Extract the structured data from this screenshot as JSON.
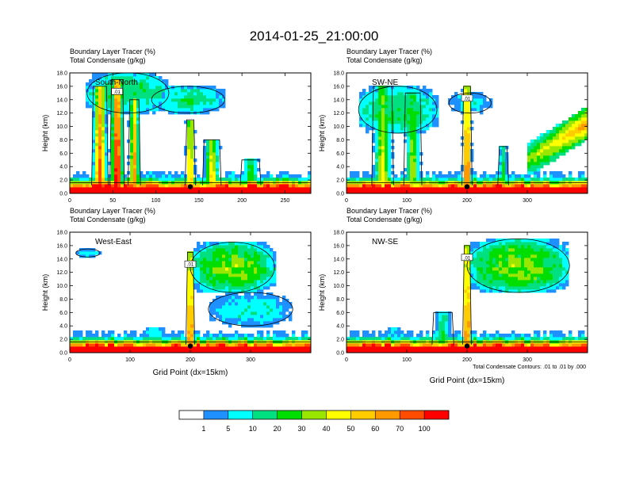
{
  "title": "2014-01-25_21:00:00",
  "subtitle_line1": "Boundary Layer Tracer   (%)",
  "subtitle_line2": "Total Condensate   (g/kg)",
  "ylabel": "Height (km)",
  "xlabel": "Grid Point (dx=15km)",
  "footnote": "Total Condensate Contours: .01 to .01 by .000",
  "contour_label": ".01",
  "colorbar": {
    "labels": [
      "1",
      "5",
      "10",
      "20",
      "30",
      "40",
      "50",
      "60",
      "70",
      "100"
    ],
    "colors": [
      "#ffffff",
      "#1e90ff",
      "#00ffff",
      "#00e080",
      "#00dd00",
      "#99e600",
      "#ffff00",
      "#ffcc00",
      "#ff9900",
      "#ff4c00",
      "#ff0000"
    ]
  },
  "chart_data": [
    {
      "type": "heatmap",
      "panel_label": "South-North",
      "xticks": [
        0,
        50,
        100,
        150,
        200,
        250
      ],
      "xlim": [
        0,
        280
      ],
      "yticks": [
        "0.0",
        "2.0",
        "4.0",
        "6.0",
        "8.0",
        "10.0",
        "12.0",
        "14.0",
        "16.0",
        "18.0"
      ],
      "ylim": [
        0,
        18
      ],
      "marker": {
        "x": 140,
        "y": 1.0
      },
      "shows_xlabel": false,
      "plumes": [
        {
          "x": 35,
          "top": 16,
          "width": 16,
          "strength": 0.8
        },
        {
          "x": 55,
          "top": 17,
          "width": 14,
          "strength": 0.95
        },
        {
          "x": 75,
          "top": 14,
          "width": 12,
          "strength": 0.7
        },
        {
          "x": 140,
          "top": 11,
          "width": 10,
          "strength": 0.7
        },
        {
          "x": 165,
          "top": 8,
          "width": 18,
          "strength": 0.6
        },
        {
          "x": 210,
          "top": 5,
          "width": 20,
          "strength": 0.4
        }
      ],
      "anvils": [
        {
          "x0": 20,
          "x1": 115,
          "y0": 12,
          "y1": 18,
          "strength": 0.35
        },
        {
          "x0": 95,
          "x1": 180,
          "y0": 12,
          "y1": 16,
          "strength": 0.3
        }
      ]
    },
    {
      "type": "heatmap",
      "panel_label": "SW-NE",
      "xticks": [
        0,
        100,
        200,
        300
      ],
      "xlim": [
        0,
        400
      ],
      "yticks": [
        "0.0",
        "2.0",
        "4.0",
        "6.0",
        "8.0",
        "10.0",
        "12.0",
        "14.0",
        "16.0",
        "18.0"
      ],
      "ylim": [
        0,
        18
      ],
      "marker": {
        "x": 200,
        "y": 1.0
      },
      "shows_xlabel": false,
      "plumes": [
        {
          "x": 60,
          "top": 16,
          "width": 30,
          "strength": 0.5
        },
        {
          "x": 110,
          "top": 15,
          "width": 25,
          "strength": 0.45
        },
        {
          "x": 200,
          "top": 16,
          "width": 14,
          "strength": 0.85
        },
        {
          "x": 260,
          "top": 7,
          "width": 15,
          "strength": 0.35
        }
      ],
      "anvils": [
        {
          "x0": 20,
          "x1": 150,
          "y0": 9,
          "y1": 16,
          "strength": 0.35
        },
        {
          "x0": 170,
          "x1": 240,
          "y0": 12,
          "y1": 15,
          "strength": 0.2
        }
      ],
      "slant": {
        "x0": 300,
        "x1": 400,
        "y_base0": 2.5,
        "y_base1": 8.0,
        "thickness": 5.0
      }
    },
    {
      "type": "heatmap",
      "panel_label": "West-East",
      "xticks": [
        0,
        100,
        200,
        300
      ],
      "xlim": [
        0,
        400
      ],
      "yticks": [
        "0.0",
        "2.0",
        "4.0",
        "6.0",
        "8.0",
        "10.0",
        "12.0",
        "14.0",
        "16.0",
        "18.0"
      ],
      "ylim": [
        0,
        18
      ],
      "marker": {
        "x": 200,
        "y": 1.0
      },
      "shows_xlabel": true,
      "plumes": [
        {
          "x": 200,
          "top": 15,
          "width": 12,
          "strength": 0.9
        },
        {
          "x": 140,
          "top": 4,
          "width": 50,
          "strength": 0.25
        }
      ],
      "anvils": [
        {
          "x0": 200,
          "x1": 340,
          "y0": 9,
          "y1": 16.5,
          "strength": 0.45
        },
        {
          "x0": 10,
          "x1": 50,
          "y0": 14.3,
          "y1": 15.5,
          "strength": 0.2
        },
        {
          "x0": 230,
          "x1": 370,
          "y0": 4,
          "y1": 9,
          "strength": 0.22
        }
      ]
    },
    {
      "type": "heatmap",
      "panel_label": "NW-SE",
      "xticks": [
        0,
        100,
        200,
        300
      ],
      "xlim": [
        0,
        400
      ],
      "yticks": [
        "0.0",
        "2.0",
        "4.0",
        "6.0",
        "8.0",
        "10.0",
        "12.0",
        "14.0",
        "16.0",
        "18.0"
      ],
      "ylim": [
        0,
        18
      ],
      "marker": {
        "x": 200,
        "y": 1.0
      },
      "shows_xlabel": true,
      "plumes": [
        {
          "x": 200,
          "top": 16,
          "width": 12,
          "strength": 0.9
        },
        {
          "x": 160,
          "top": 6,
          "width": 30,
          "strength": 0.35
        },
        {
          "x": 80,
          "top": 4,
          "width": 35,
          "strength": 0.2
        }
      ],
      "anvils": [
        {
          "x0": 200,
          "x1": 370,
          "y0": 9,
          "y1": 17,
          "strength": 0.45
        }
      ]
    }
  ]
}
